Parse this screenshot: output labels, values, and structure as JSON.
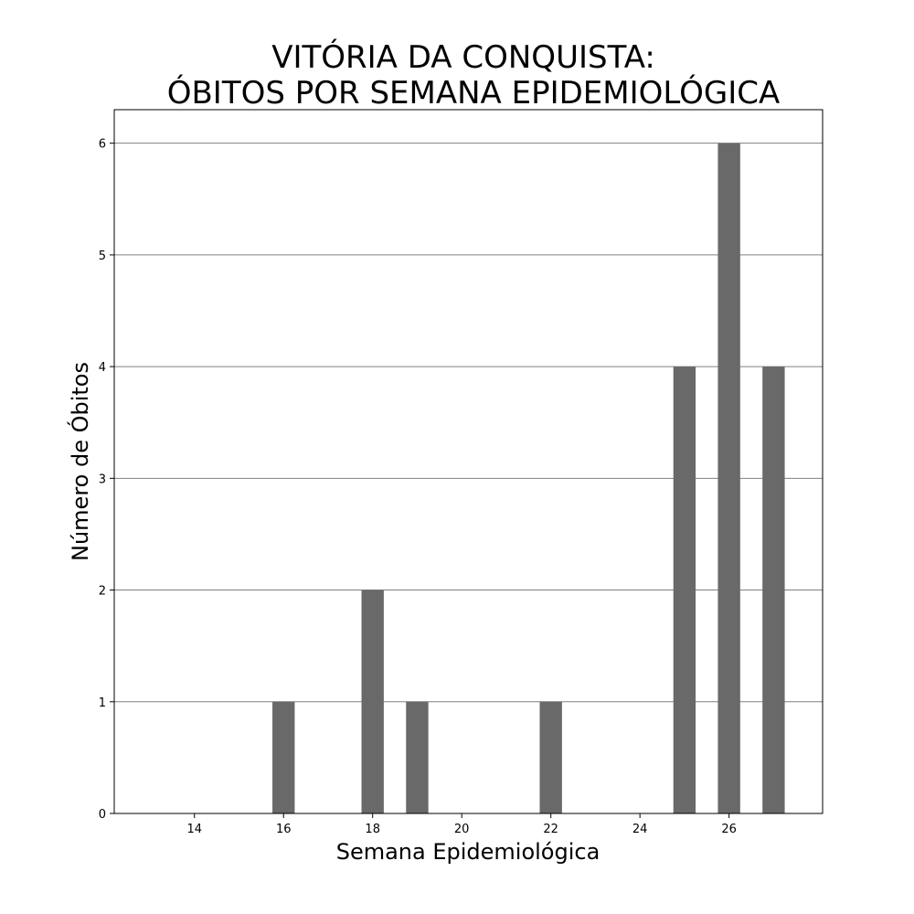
{
  "chart_data": {
    "type": "bar",
    "title_lines": [
      "VITÓRIA DA CONQUISTA:",
      "ÓBITOS POR SEMANA EPIDEMIOLÓGICA"
    ],
    "xlabel": "Semana Epidemiológica",
    "ylabel": "Número de Óbitos",
    "x": [
      16,
      18,
      19,
      22,
      25,
      26,
      27
    ],
    "values": [
      1,
      2,
      1,
      1,
      4,
      6,
      4
    ],
    "xlim": [
      12.2,
      28.1
    ],
    "ylim": [
      0,
      6.3
    ],
    "xticks": [
      14,
      16,
      18,
      20,
      22,
      24,
      26
    ],
    "yticks": [
      0,
      1,
      2,
      3,
      4,
      5,
      6
    ],
    "bar_width": 0.5,
    "bar_color": "#696969",
    "grid": "y",
    "grid_color": "#808080",
    "legend": "none"
  }
}
